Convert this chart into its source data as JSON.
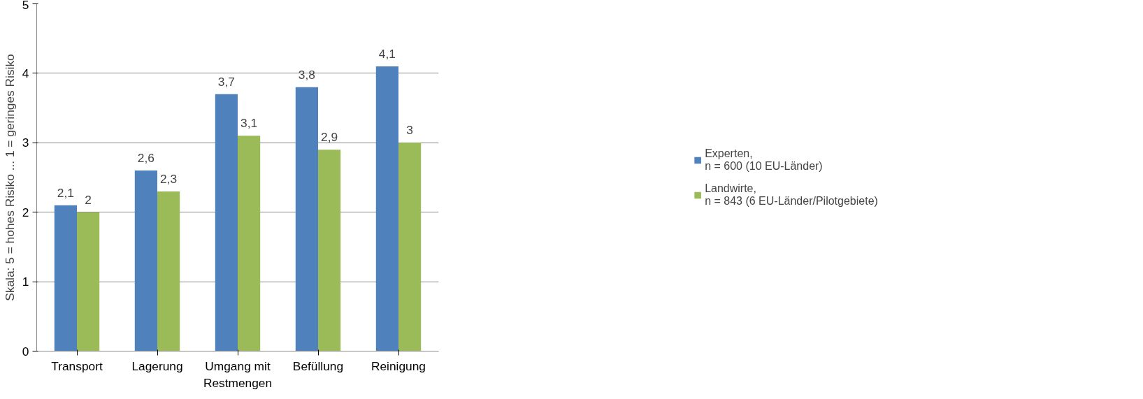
{
  "chart_data": {
    "type": "bar",
    "ylabel": "Skala: 5 = hohes Risiko ... 1 = geringes Risiko",
    "categories": [
      "Transport",
      "Lagerung",
      "Umgang mit Restmengen",
      "Befüllung",
      "Reinigung"
    ],
    "series": [
      {
        "name": "Experten,\nn = 600 (10 EU-Länder)",
        "color": "#4f81bd",
        "values": [
          2.1,
          2.6,
          3.7,
          3.8,
          4.1
        ],
        "value_labels": [
          "2,1",
          "2,6",
          "3,7",
          "3,8",
          "4,1"
        ]
      },
      {
        "name": "Landwirte,\nn = 843 (6 EU-Länder/Pilotgebiete)",
        "color": "#9bbb59",
        "values": [
          2,
          2.3,
          3.1,
          2.9,
          3
        ],
        "value_labels": [
          "2",
          "2,3",
          "3,1",
          "2,9",
          "3"
        ]
      }
    ],
    "ylim": [
      0,
      5
    ],
    "yticks": [
      0,
      1,
      2,
      3,
      4,
      5
    ],
    "grid": "y",
    "legend": "right"
  }
}
